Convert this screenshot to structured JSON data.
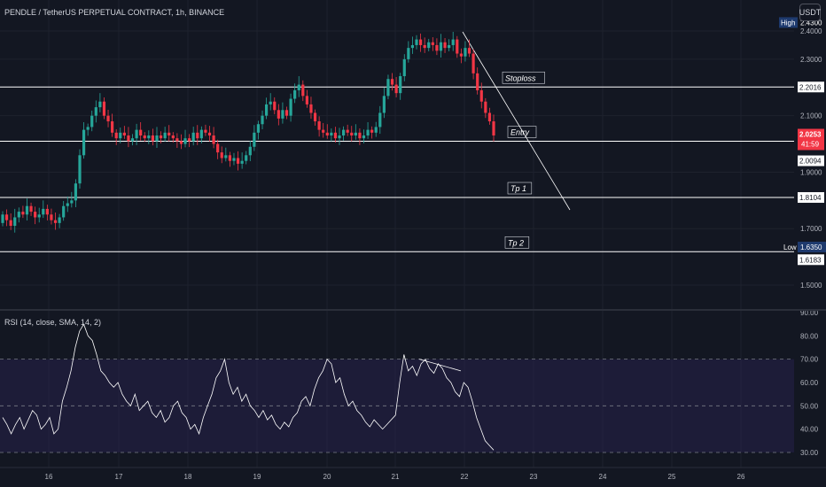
{
  "header": {
    "symbol_title": "PENDLE / TetherUS PERPETUAL CONTRACT, 1h, BINANCE",
    "currency_button": "USDT"
  },
  "rsi_panel": {
    "title": "RSI (14, close, SMA, 14, 2)"
  },
  "annotations": [
    {
      "id": "stoploss",
      "label": "Stoploss",
      "price": 2.2016
    },
    {
      "id": "entry",
      "label": "Entry",
      "price": 2.0094
    },
    {
      "id": "tp1",
      "label": "Tp 1",
      "price": 1.8104
    },
    {
      "id": "tp2",
      "label": "Tp 2",
      "price": 1.6183
    }
  ],
  "price_axis": {
    "ticks": [
      "2.4000",
      "2.3000",
      "2.1000",
      "1.9000",
      "1.7000",
      "1.5000"
    ],
    "high": {
      "label": "High",
      "value": "2.4300"
    },
    "low": {
      "label": "Low",
      "value": "1.6350"
    },
    "level_labels": [
      "2.2016",
      "2.0094",
      "1.8104",
      "1.6183"
    ],
    "current_price": "2.0253",
    "countdown": "41:59"
  },
  "rsi_axis": {
    "ticks": [
      "90.00",
      "80.00",
      "70.00",
      "60.00",
      "50.00",
      "40.00",
      "30.00"
    ]
  },
  "time_axis": {
    "labels": [
      "16",
      "17",
      "18",
      "19",
      "20",
      "21",
      "22",
      "23",
      "24",
      "25",
      "26"
    ]
  },
  "colors": {
    "background": "#131722",
    "up": "#26a69a",
    "down": "#f23645",
    "rsi_line": "#ffffff",
    "rsi_band": "#2a2454",
    "level_line": "#ffffff"
  },
  "chart_data": {
    "type": "candlestick",
    "title": "PENDLE / TetherUS PERPETUAL CONTRACT, 1h, BINANCE",
    "ylim": [
      1.44,
      2.44
    ],
    "x_labels": [
      "16",
      "17",
      "18",
      "19",
      "20",
      "21",
      "22",
      "23",
      "24",
      "25",
      "26"
    ],
    "series": [
      {
        "name": "price",
        "close_path": [
          1.75,
          1.73,
          1.71,
          1.74,
          1.76,
          1.75,
          1.78,
          1.76,
          1.74,
          1.75,
          1.77,
          1.75,
          1.73,
          1.72,
          1.74,
          1.78,
          1.79,
          1.8,
          1.86,
          1.96,
          2.05,
          2.06,
          2.1,
          2.13,
          2.15,
          2.1,
          2.08,
          2.04,
          2.02,
          2.04,
          2.03,
          2.01,
          2.02,
          2.05,
          2.03,
          2.02,
          2.03,
          2.01,
          2.03,
          2.02,
          2.04,
          2.03,
          2.02,
          2.01,
          2.0,
          2.02,
          2.01,
          2.04,
          2.02,
          2.05,
          2.04,
          2.03,
          2.0,
          1.97,
          1.95,
          1.96,
          1.94,
          1.95,
          1.93,
          1.94,
          1.96,
          1.99,
          2.04,
          2.07,
          2.1,
          2.14,
          2.15,
          2.12,
          2.09,
          2.12,
          2.1,
          2.16,
          2.19,
          2.21,
          2.17,
          2.14,
          2.11,
          2.08,
          2.05,
          2.04,
          2.03,
          2.04,
          2.02,
          2.03,
          2.05,
          2.04,
          2.03,
          2.04,
          2.02,
          2.03,
          2.05,
          2.04,
          2.06,
          2.11,
          2.17,
          2.23,
          2.21,
          2.18,
          2.24,
          2.3,
          2.34,
          2.35,
          2.37,
          2.35,
          2.34,
          2.36,
          2.35,
          2.33,
          2.36,
          2.34,
          2.35,
          2.37,
          2.32,
          2.31,
          2.34,
          2.32,
          2.25,
          2.19,
          2.15,
          2.11,
          2.08,
          2.03
        ]
      },
      {
        "name": "RSI",
        "values": [
          45,
          42,
          38,
          42,
          45,
          40,
          44,
          48,
          46,
          40,
          42,
          45,
          38,
          40,
          52,
          58,
          65,
          75,
          82,
          85,
          80,
          78,
          72,
          65,
          63,
          60,
          58,
          60,
          55,
          52,
          50,
          55,
          48,
          50,
          52,
          47,
          45,
          48,
          43,
          45,
          50,
          52,
          47,
          45,
          40,
          42,
          38,
          45,
          50,
          55,
          62,
          65,
          70,
          60,
          55,
          58,
          52,
          55,
          50,
          48,
          45,
          48,
          44,
          46,
          42,
          40,
          43,
          41,
          45,
          47,
          52,
          54,
          50,
          57,
          62,
          65,
          70,
          68,
          60,
          62,
          55,
          50,
          52,
          48,
          46,
          43,
          41,
          44,
          42,
          40,
          42,
          44,
          46,
          60,
          72,
          65,
          67,
          63,
          68,
          70,
          66,
          64,
          68,
          66,
          62,
          60,
          56,
          54,
          60,
          58,
          52,
          45,
          40,
          35,
          33,
          31
        ]
      }
    ]
  }
}
